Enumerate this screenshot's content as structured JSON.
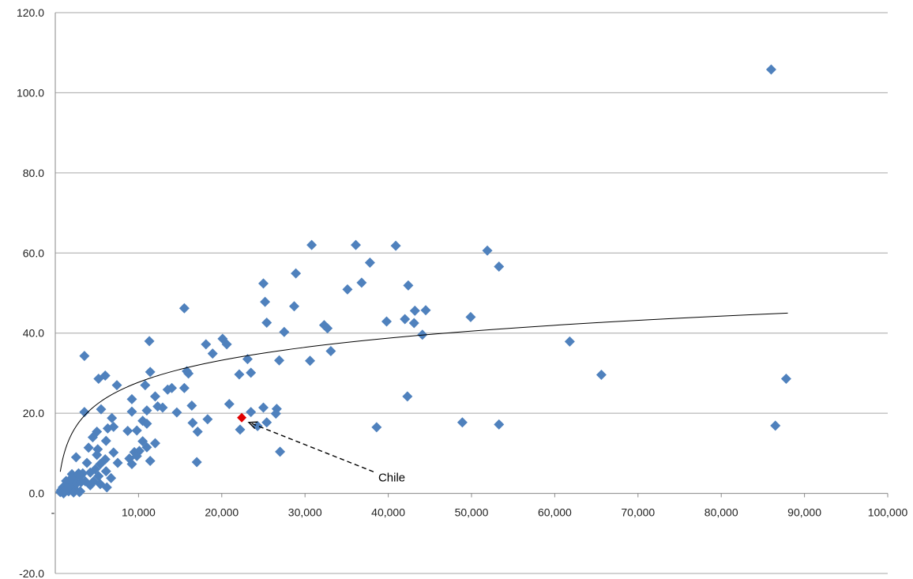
{
  "chart_data": {
    "type": "scatter",
    "title": "",
    "xlabel": "",
    "ylabel": "",
    "xlim": [
      0,
      100000
    ],
    "ylim": [
      -20,
      120
    ],
    "x_ticks": [
      {
        "value": 0,
        "label": "-"
      },
      {
        "value": 10000,
        "label": "10,000"
      },
      {
        "value": 20000,
        "label": "20,000"
      },
      {
        "value": 30000,
        "label": "30,000"
      },
      {
        "value": 40000,
        "label": "40,000"
      },
      {
        "value": 50000,
        "label": "50,000"
      },
      {
        "value": 60000,
        "label": "60,000"
      },
      {
        "value": 70000,
        "label": "70,000"
      },
      {
        "value": 80000,
        "label": "80,000"
      },
      {
        "value": 90000,
        "label": "90,000"
      },
      {
        "value": 100000,
        "label": "100,000"
      }
    ],
    "y_ticks": [
      {
        "value": -20,
        "label": "-20.0"
      },
      {
        "value": 0,
        "label": "0.0"
      },
      {
        "value": 20,
        "label": "20.0"
      },
      {
        "value": 40,
        "label": "40.0"
      },
      {
        "value": 60,
        "label": "60.0"
      },
      {
        "value": 80,
        "label": "80.0"
      },
      {
        "value": 100,
        "label": "100.0"
      },
      {
        "value": 120,
        "label": "120.0"
      }
    ],
    "grid": "horizontal",
    "marker": "diamond",
    "point_color": "#4f81bd",
    "highlight_color": "#e00000",
    "trendline": {
      "type": "logarithmic",
      "a": 7.94,
      "b": -45.4,
      "x_range": [
        600,
        88000
      ],
      "color": "#000000"
    },
    "series": [
      {
        "points": [
          [
            86000,
            105.8
          ],
          [
            30800,
            62.0
          ],
          [
            36100,
            62.0
          ],
          [
            40900,
            61.8
          ],
          [
            51900,
            60.6
          ],
          [
            53300,
            56.6
          ],
          [
            37800,
            57.6
          ],
          [
            28900,
            54.9
          ],
          [
            36800,
            52.6
          ],
          [
            25000,
            52.4
          ],
          [
            42400,
            51.9
          ],
          [
            35100,
            50.9
          ],
          [
            25200,
            47.8
          ],
          [
            28700,
            46.7
          ],
          [
            15500,
            46.2
          ],
          [
            43200,
            45.6
          ],
          [
            44500,
            45.7
          ],
          [
            42000,
            43.5
          ],
          [
            43100,
            42.5
          ],
          [
            39800,
            42.9
          ],
          [
            25400,
            42.6
          ],
          [
            32300,
            42.0
          ],
          [
            32700,
            41.2
          ],
          [
            27500,
            40.3
          ],
          [
            44100,
            39.6
          ],
          [
            49900,
            44.0
          ],
          [
            20100,
            38.6
          ],
          [
            20600,
            37.2
          ],
          [
            11300,
            38.0
          ],
          [
            61800,
            37.9
          ],
          [
            18100,
            37.2
          ],
          [
            33100,
            35.5
          ],
          [
            18900,
            34.9
          ],
          [
            3500,
            34.3
          ],
          [
            23100,
            33.5
          ],
          [
            30600,
            33.1
          ],
          [
            26900,
            33.2
          ],
          [
            15800,
            30.5
          ],
          [
            16000,
            29.9
          ],
          [
            11400,
            30.3
          ],
          [
            23500,
            30.1
          ],
          [
            22100,
            29.7
          ],
          [
            6000,
            29.4
          ],
          [
            65600,
            29.6
          ],
          [
            87800,
            28.6
          ],
          [
            5200,
            28.6
          ],
          [
            7400,
            27.0
          ],
          [
            10800,
            27.0
          ],
          [
            13500,
            25.9
          ],
          [
            14000,
            26.3
          ],
          [
            15500,
            26.3
          ],
          [
            12000,
            24.2
          ],
          [
            42300,
            24.2
          ],
          [
            9200,
            23.5
          ],
          [
            20900,
            22.3
          ],
          [
            12300,
            21.7
          ],
          [
            12900,
            21.4
          ],
          [
            16400,
            21.9
          ],
          [
            25000,
            21.4
          ],
          [
            26600,
            21.1
          ],
          [
            3500,
            20.3
          ],
          [
            5500,
            21.0
          ],
          [
            9200,
            20.4
          ],
          [
            11000,
            20.7
          ],
          [
            14600,
            20.2
          ],
          [
            23500,
            20.3
          ],
          [
            26500,
            19.9
          ],
          [
            6800,
            18.8
          ],
          [
            10500,
            18.1
          ],
          [
            18300,
            18.5
          ],
          [
            11000,
            17.4
          ],
          [
            16500,
            17.6
          ],
          [
            25400,
            17.7
          ],
          [
            24300,
            16.8
          ],
          [
            48900,
            17.7
          ],
          [
            53300,
            17.2
          ],
          [
            86500,
            16.9
          ],
          [
            38600,
            16.5
          ],
          [
            6300,
            16.2
          ],
          [
            7000,
            16.6
          ],
          [
            8700,
            15.6
          ],
          [
            9800,
            15.7
          ],
          [
            17100,
            15.4
          ],
          [
            22200,
            15.9
          ],
          [
            5000,
            15.4
          ],
          [
            4500,
            14.0
          ],
          [
            6100,
            13.1
          ],
          [
            10500,
            13.0
          ],
          [
            12000,
            12.5
          ],
          [
            4000,
            11.4
          ],
          [
            5100,
            11.0
          ],
          [
            11000,
            11.5
          ],
          [
            9500,
            10.3
          ],
          [
            10100,
            10.6
          ],
          [
            7000,
            10.2
          ],
          [
            27000,
            10.4
          ],
          [
            5000,
            9.6
          ],
          [
            2500,
            9.0
          ],
          [
            6000,
            8.5
          ],
          [
            8900,
            8.7
          ],
          [
            9800,
            9.3
          ],
          [
            11400,
            8.1
          ],
          [
            3800,
            7.6
          ],
          [
            7500,
            7.6
          ],
          [
            9200,
            7.3
          ],
          [
            17000,
            7.8
          ],
          [
            5400,
            7.3
          ],
          [
            4800,
            6.0
          ],
          [
            6100,
            5.5
          ],
          [
            3300,
            5.0
          ],
          [
            2800,
            5.0
          ],
          [
            2000,
            4.8
          ],
          [
            4200,
            5.2
          ],
          [
            6700,
            3.8
          ],
          [
            5200,
            4.3
          ],
          [
            3600,
            3.0
          ],
          [
            2200,
            3.3
          ],
          [
            4200,
            2.0
          ],
          [
            6200,
            1.5
          ],
          [
            1500,
            2.5
          ],
          [
            1200,
            2.0
          ],
          [
            900,
            1.5
          ],
          [
            700,
            0.8
          ],
          [
            600,
            0.3
          ],
          [
            1800,
            1.0
          ],
          [
            2400,
            0.9
          ],
          [
            3000,
            0.5
          ],
          [
            1000,
            0.0
          ],
          [
            2000,
            1.8
          ],
          [
            2600,
            2.5
          ],
          [
            1600,
            0.5
          ],
          [
            3100,
            2.8
          ],
          [
            4600,
            3.0
          ],
          [
            5400,
            2.3
          ],
          [
            1300,
            3.1
          ],
          [
            2500,
            4.1
          ],
          [
            3000,
            4.3
          ],
          [
            1900,
            3.7
          ],
          [
            800,
            0.4
          ],
          [
            1100,
            0.8
          ],
          [
            1400,
            1.2
          ],
          [
            2200,
            0.2
          ],
          [
            2900,
            0.3
          ]
        ]
      }
    ],
    "highlight": {
      "x": 22400,
      "y": 18.9,
      "label": "Chile"
    },
    "annotation": {
      "text": "Chile",
      "x": 38800,
      "y": 4.2
    }
  }
}
